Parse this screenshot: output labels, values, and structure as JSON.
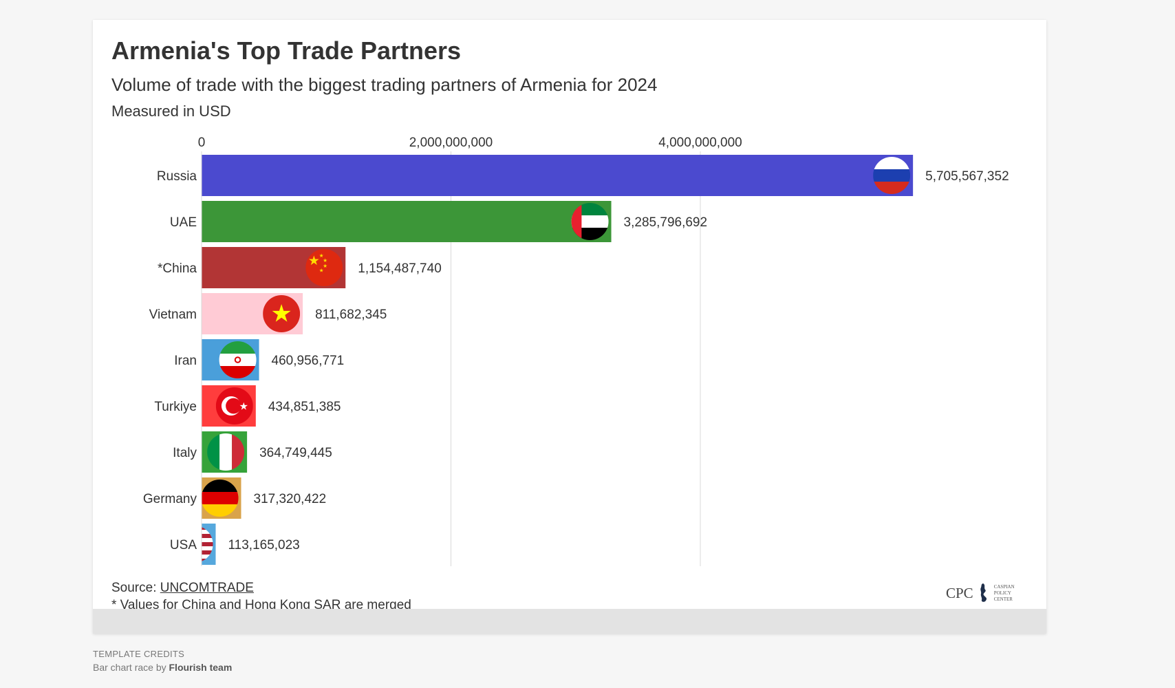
{
  "title": "Armenia's Top Trade Partners",
  "subtitle": "Volume of trade with the biggest trading partners of Armenia for 2024",
  "measure_note": "Measured in USD",
  "source_label": "Source:",
  "source_link": "UNCOMTRADE",
  "footnote": "* Values for China and Hong Kong SAR are merged",
  "logo": {
    "abbr": "CPC",
    "line1": "Caspian",
    "line2": "Policy",
    "line3": "Center"
  },
  "credits": {
    "title": "TEMPLATE CREDITS",
    "prefix": "Bar chart race by",
    "author": "Flourish team"
  },
  "chart_data": {
    "type": "bar",
    "orientation": "horizontal",
    "xlim": [
      0,
      6500000000
    ],
    "x_ticks": [
      0,
      2000000000,
      4000000000
    ],
    "x_tick_labels": [
      "0",
      "2,000,000,000",
      "4,000,000,000"
    ],
    "grid": true,
    "categories": [
      "Russia",
      "UAE",
      "*China",
      "Vietnam",
      "Iran",
      "Turkiye",
      "Italy",
      "Germany",
      "USA"
    ],
    "values": [
      5705567352,
      3285796692,
      1154487740,
      811682345,
      460956771,
      434851385,
      364749445,
      317320422,
      113165023
    ],
    "value_labels": [
      "5,705,567,352",
      "3,285,796,692",
      "1,154,487,740",
      "811,682,345",
      "460,956,771",
      "434,851,385",
      "364,749,445",
      "317,320,422",
      "113,165,023"
    ],
    "colors": [
      "#4b4acf",
      "#3c9638",
      "#b23535",
      "#ffcbd5",
      "#4a9fda",
      "#ff3d3d",
      "#36a33a",
      "#d9a34a",
      "#56a8dd"
    ],
    "flags": [
      "russia-flag-icon",
      "uae-flag-icon",
      "china-flag-icon",
      "vietnam-flag-icon",
      "iran-flag-icon",
      "turkiye-flag-icon",
      "italy-flag-icon",
      "germany-flag-icon",
      "usa-flag-icon"
    ]
  }
}
